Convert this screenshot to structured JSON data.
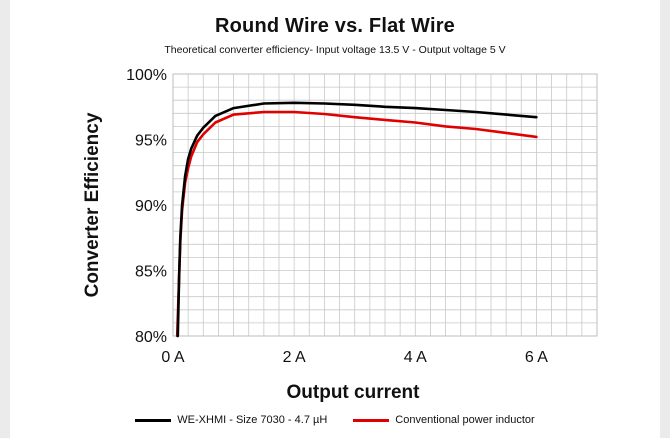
{
  "chart_data": {
    "type": "line",
    "title": "Round Wire vs. Flat Wire",
    "subtitle": "Theoretical converter efficiency- Input voltage 13.5 V - Output voltage 5 V",
    "xlabel": "Output current",
    "ylabel": "Converter Efficiency",
    "xlim": [
      0,
      7
    ],
    "ylim": [
      80,
      100
    ],
    "x_ticks": [
      {
        "value": 0,
        "label": "0 A"
      },
      {
        "value": 2,
        "label": "2 A"
      },
      {
        "value": 4,
        "label": "4 A"
      },
      {
        "value": 6,
        "label": "6 A"
      }
    ],
    "y_ticks": [
      {
        "value": 100,
        "label": "100%"
      },
      {
        "value": 95,
        "label": "95%"
      },
      {
        "value": 90,
        "label": "90%"
      },
      {
        "value": 85,
        "label": "85%"
      },
      {
        "value": 80,
        "label": "80%"
      }
    ],
    "grid": true,
    "legend_position": "bottom",
    "series": [
      {
        "name": "WE-XHMI - Size 7030 - 4.7 µH",
        "color": "#000000",
        "x": [
          0.08,
          0.1,
          0.12,
          0.15,
          0.2,
          0.25,
          0.3,
          0.4,
          0.5,
          0.7,
          1.0,
          1.5,
          2.0,
          2.5,
          3.0,
          3.5,
          4.0,
          4.5,
          5.0,
          5.5,
          6.0
        ],
        "y": [
          80.0,
          84.5,
          87.5,
          90.0,
          92.2,
          93.5,
          94.3,
          95.3,
          95.9,
          96.8,
          97.4,
          97.75,
          97.8,
          97.75,
          97.65,
          97.5,
          97.4,
          97.25,
          97.1,
          96.9,
          96.7
        ]
      },
      {
        "name": "Conventional power inductor",
        "color": "#e00000",
        "x": [
          0.07,
          0.1,
          0.12,
          0.15,
          0.2,
          0.25,
          0.3,
          0.4,
          0.5,
          0.7,
          1.0,
          1.5,
          2.0,
          2.5,
          3.0,
          3.5,
          4.0,
          4.5,
          5.0,
          5.5,
          6.0
        ],
        "y": [
          80.0,
          84.5,
          87.2,
          89.6,
          91.7,
          92.8,
          93.7,
          94.8,
          95.4,
          96.3,
          96.9,
          97.1,
          97.1,
          96.95,
          96.7,
          96.5,
          96.3,
          96.0,
          95.8,
          95.5,
          95.2
        ]
      }
    ]
  }
}
